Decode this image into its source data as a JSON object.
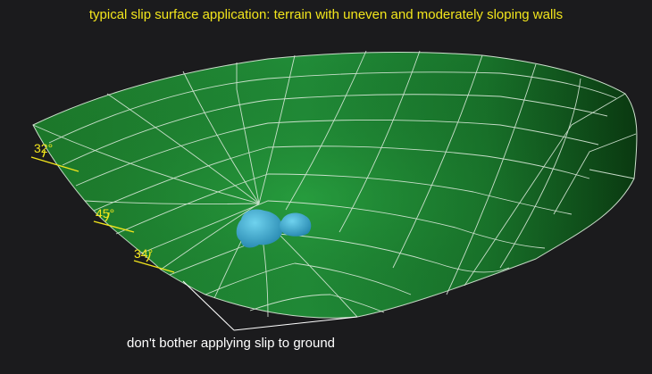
{
  "title": "typical slip surface application: terrain with uneven and moderately sloping walls",
  "caption": "don't bother applying slip to ground",
  "angles": [
    {
      "label": "32°"
    },
    {
      "label": "45°"
    },
    {
      "label": "34°"
    }
  ],
  "colors": {
    "background": "#1b1b1d",
    "terrain_light": "#2a9a3a",
    "terrain_mid": "#1c7a2a",
    "terrain_dark": "#0b3a12",
    "grid": "#d8e8d8",
    "blob": "#3fb3d6",
    "label": "#f2e51c",
    "caption": "#ffffff"
  }
}
